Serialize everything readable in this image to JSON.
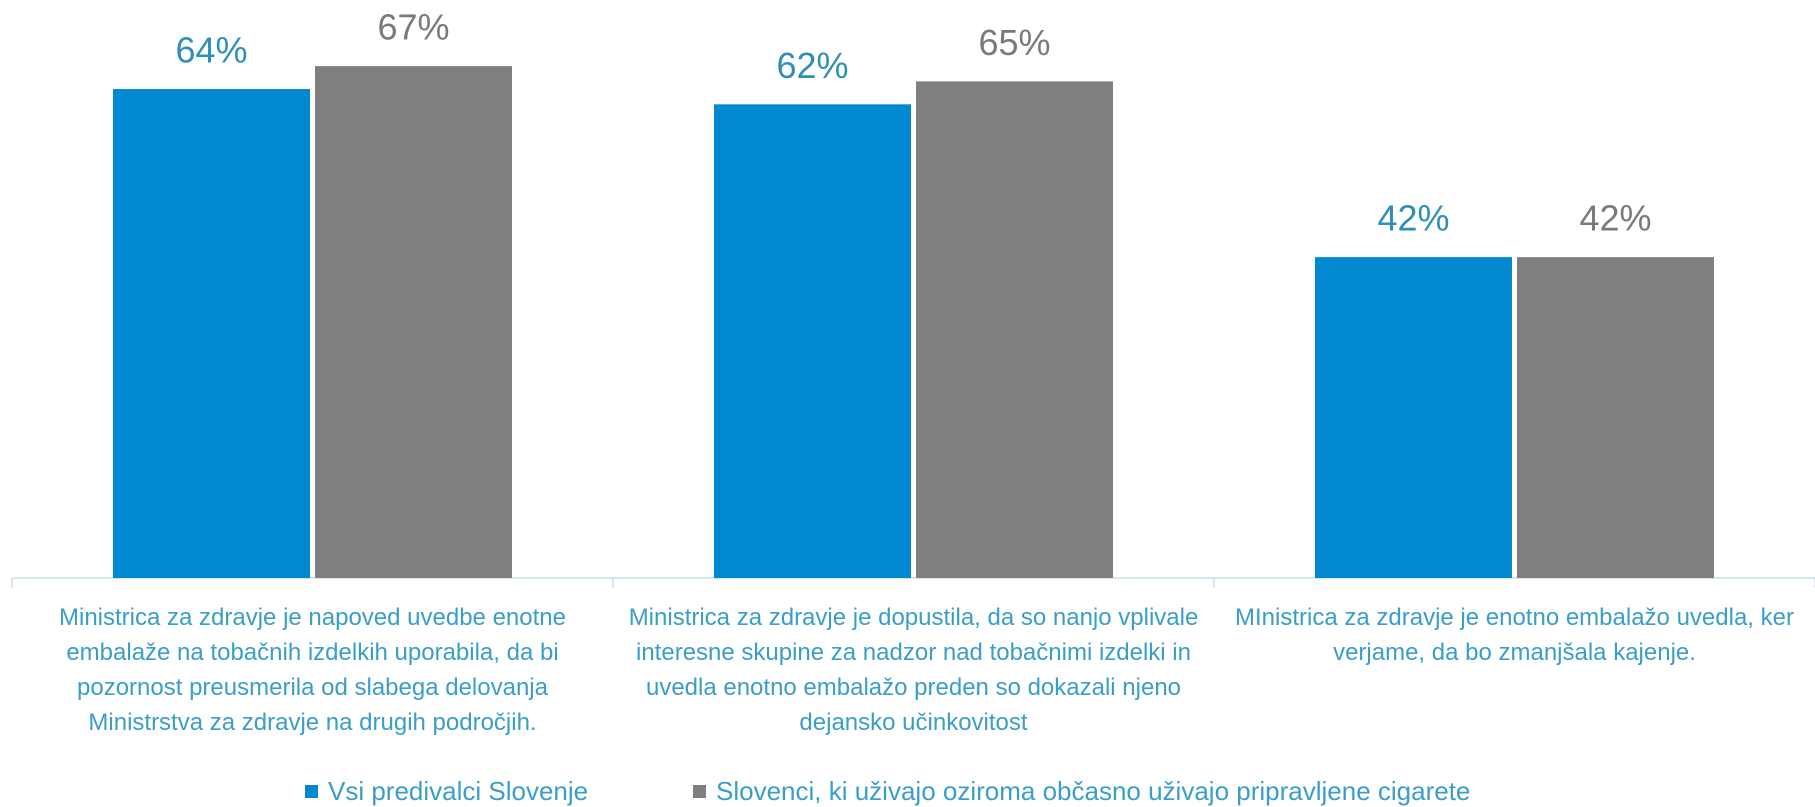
{
  "chart_data": {
    "type": "bar",
    "categories": [
      "Ministrica za zdravje je napoved uvedbe enotne embalaže na tobačnih izdelkih uporabila, da bi pozornost preusmerila od slabega delovanja Ministrstva za zdravje na drugih področjih.",
      "Ministrica za zdravje je dopustila, da so nanjo vplivale interesne skupine za nadzor nad tobačnimi izdelki in uvedla enotno embalažo preden so dokazali njeno dejansko učinkovitost",
      "MInistrica za zdravje je enotno embalažo uvedla, ker verjame, da bo zmanjšala kajenje."
    ],
    "series": [
      {
        "name": "Vsi predivalci Slovenje",
        "color": "#0288d1",
        "label_color": "#2f8fb8",
        "values": [
          64,
          62,
          42
        ],
        "value_labels": [
          "64%",
          "62%",
          "42%"
        ]
      },
      {
        "name": "Slovenci, ki uživajo oziroma občasno uživajo pripravljene cigarete",
        "color": "#7f7f7f",
        "label_color": "#7a7a7a",
        "values": [
          67,
          65,
          42
        ],
        "value_labels": [
          "67%",
          "65%",
          "42%"
        ]
      }
    ],
    "ylim": [
      0,
      75
    ]
  }
}
